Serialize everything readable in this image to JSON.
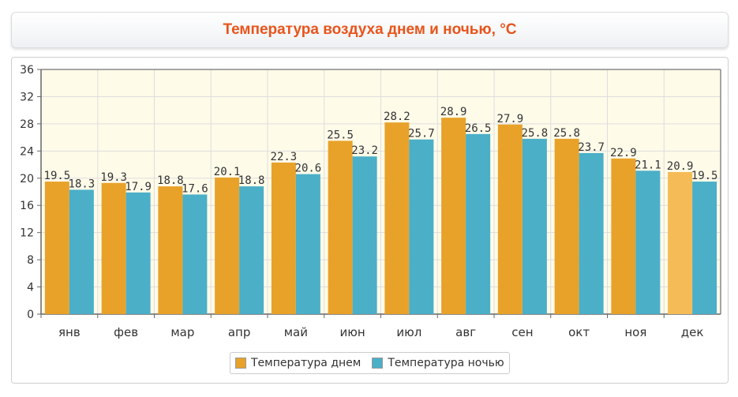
{
  "title": "Температура воздуха днем и ночью, °C",
  "colors": {
    "day": "#e8a22a",
    "day_highlight": "#f5bb56",
    "night": "#4bafc8",
    "plot_bg": "#fffbe9",
    "grid": "#dddddd"
  },
  "chart_data": {
    "type": "bar",
    "title": "Температура воздуха днем и ночью, °C",
    "xlabel": "",
    "ylabel": "",
    "categories": [
      "янв",
      "фев",
      "мар",
      "апр",
      "май",
      "июн",
      "июл",
      "авг",
      "сен",
      "окт",
      "ноя",
      "дек"
    ],
    "series": [
      {
        "name": "Температура днем",
        "values": [
          19.5,
          19.3,
          18.8,
          20.1,
          22.3,
          25.5,
          28.2,
          28.9,
          27.9,
          25.8,
          22.9,
          20.9
        ]
      },
      {
        "name": "Температура ночью",
        "values": [
          18.3,
          17.9,
          17.6,
          18.8,
          20.6,
          23.2,
          25.7,
          26.5,
          25.8,
          23.7,
          21.1,
          19.5
        ]
      }
    ],
    "ylim": [
      0,
      36
    ],
    "yticks": [
      0,
      4,
      8,
      12,
      16,
      20,
      24,
      28,
      32,
      36
    ],
    "grid": true,
    "legend_position": "bottom-center",
    "highlighted_category": "дек"
  }
}
